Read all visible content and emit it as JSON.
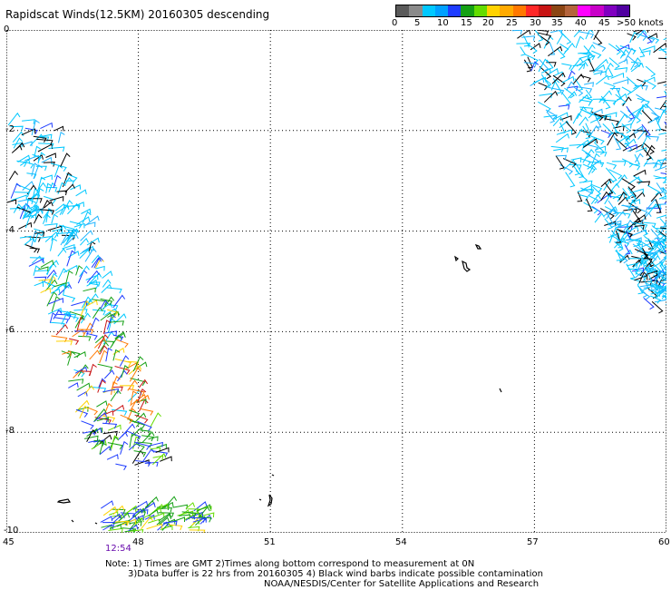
{
  "title": "Rapidscat Winds(12.5KM) 20160305 descending",
  "legend": {
    "colors": [
      "#5a5a5a",
      "#8a8a8a",
      "#00c8ff",
      "#00a0ff",
      "#1e3cff",
      "#14a014",
      "#64dc00",
      "#ffd200",
      "#ffaa00",
      "#ff7800",
      "#ff2828",
      "#c81414",
      "#8b4513",
      "#b4643c",
      "#ff00ff",
      "#c800c8",
      "#8000c0",
      "#5000a0"
    ],
    "labels": [
      "0",
      "5",
      "10",
      "15",
      "20",
      "25",
      "30",
      "35",
      "40",
      "45",
      ">50 knots"
    ]
  },
  "y_ticks": [
    "0",
    "-2",
    "-4",
    "-6",
    "-8",
    "-10"
  ],
  "x_ticks": [
    "45",
    "48",
    "51",
    "54",
    "57",
    "60"
  ],
  "timestamp": "12:54",
  "notes": {
    "line1": "Note: 1) Times are GMT 2)Times along bottom correspond to measurement at 0N",
    "line2": "3)Data buffer is 22 hrs from 20160305 4) Black wind barbs indicate possible contamination",
    "line3": "NOAA/NESDIS/Center for Satellite Applications and Research"
  },
  "map": {
    "lon_range": [
      45,
      60
    ],
    "lat_range": [
      -10,
      0
    ],
    "grid_lons": [
      48,
      51,
      54,
      57
    ],
    "grid_lats": [
      -2,
      -4,
      -6,
      -8
    ]
  }
}
